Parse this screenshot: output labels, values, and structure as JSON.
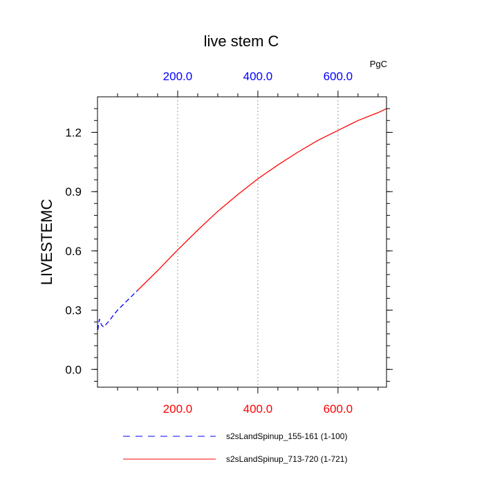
{
  "chart_data": {
    "type": "line",
    "title": "live stem C",
    "units_label": "PgC",
    "ylabel": "LIVESTEMC",
    "xlim": [
      0,
      721
    ],
    "ylim": [
      -0.09,
      1.38
    ],
    "xticks": [
      200,
      400,
      600
    ],
    "xtick_labels": [
      "200.0",
      "400.0",
      "600.0"
    ],
    "yticks": [
      0.0,
      0.3,
      0.6,
      0.9,
      1.2
    ],
    "ytick_labels": [
      "0.0",
      "0.3",
      "0.6",
      "0.9",
      "1.2"
    ],
    "xtick_color_bottom": "#ff0000",
    "xtick_color_top": "#0000ff",
    "grid": "vertical dotted at x ticks",
    "legend_position": "bottom",
    "series": [
      {
        "name": "s2sLandSpinup_155-161 (1-100)",
        "color": "#0000ff",
        "style": "dashed",
        "x": [
          1,
          3,
          5,
          7,
          10,
          15,
          20,
          30,
          40,
          50,
          60,
          70,
          80,
          90,
          100
        ],
        "y": [
          0.2,
          0.235,
          0.255,
          0.24,
          0.225,
          0.215,
          0.225,
          0.248,
          0.275,
          0.3,
          0.32,
          0.34,
          0.36,
          0.38,
          0.4
        ]
      },
      {
        "name": "s2sLandSpinup_713-720 (1-721)",
        "color": "#ff0000",
        "style": "solid",
        "x": [
          100,
          150,
          200,
          250,
          300,
          350,
          400,
          450,
          500,
          550,
          600,
          650,
          700,
          721
        ],
        "y": [
          0.4,
          0.5,
          0.605,
          0.705,
          0.8,
          0.885,
          0.965,
          1.035,
          1.1,
          1.16,
          1.21,
          1.26,
          1.3,
          1.32
        ]
      }
    ]
  }
}
